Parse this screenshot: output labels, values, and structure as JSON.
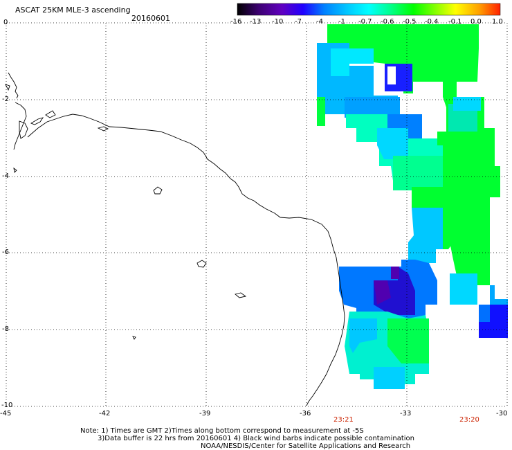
{
  "header": {
    "title": "ASCAT 25KM MLE-3 ascending",
    "date": "20160601"
  },
  "colorbar": {
    "labels": [
      "-16",
      "-13",
      "-10",
      "-7",
      "-4",
      "-1",
      "-0.7",
      "-0.6",
      "-0.5",
      "-0.4",
      "-0.1",
      "0.0",
      "1.0"
    ],
    "colors": [
      "#000000",
      "#3c0070",
      "#6000c0",
      "#2000ff",
      "#0080ff",
      "#00c8ff",
      "#00ffff",
      "#00ff90",
      "#00ff00",
      "#80ff00",
      "#ffff00",
      "#ffa000",
      "#ff3000"
    ]
  },
  "axes": {
    "x_labels": [
      "-45",
      "-42",
      "-39",
      "-36",
      "-33",
      "-30"
    ],
    "y_labels": [
      "0",
      "-2",
      "-4",
      "-6",
      "-8",
      "-10"
    ]
  },
  "swath_times": [
    "23:21",
    "23:20"
  ],
  "notes": {
    "line1": "Note: 1) Times are GMT 2)Times along bottom correspond to measurement at -5S",
    "line2": "3)Data buffer is 22 hrs from 20160601 4) Black wind barbs indicate possible contamination",
    "line3": "NOAA/NESDIS/Center for Satellite Applications and Research"
  },
  "colors": {
    "coastline": "#000000",
    "grid": "#000000",
    "time_label": "#cc2200"
  }
}
